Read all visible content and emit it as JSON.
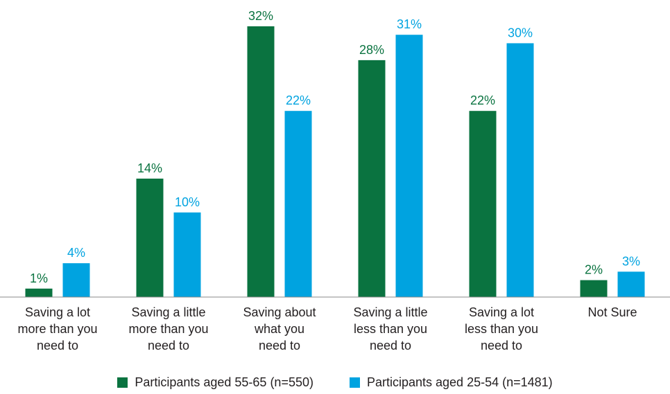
{
  "chart_data": {
    "type": "bar",
    "categories": [
      [
        "Saving a lot",
        "more than you",
        "need to"
      ],
      [
        "Saving a little",
        "more than you",
        "need to"
      ],
      [
        "Saving about",
        "what you",
        "need to"
      ],
      [
        "Saving a little",
        "less than you",
        "need to"
      ],
      [
        "Saving a lot",
        "less than you",
        "need to"
      ],
      [
        "Not Sure"
      ]
    ],
    "series": [
      {
        "name": "Participants aged 55-65 (n=550)",
        "color": "#0a7340",
        "values": [
          1,
          14,
          32,
          28,
          22,
          2
        ],
        "labels": [
          "1%",
          "14%",
          "32%",
          "28%",
          "22%",
          "2%"
        ]
      },
      {
        "name": "Participants aged 25-54 (n=1481)",
        "color": "#00a3e0",
        "values": [
          4,
          10,
          22,
          31,
          30,
          3
        ],
        "labels": [
          "4%",
          "10%",
          "22%",
          "31%",
          "30%",
          "3%"
        ]
      }
    ],
    "ylim": [
      0,
      33
    ],
    "grid": false,
    "legend_position": "bottom"
  }
}
